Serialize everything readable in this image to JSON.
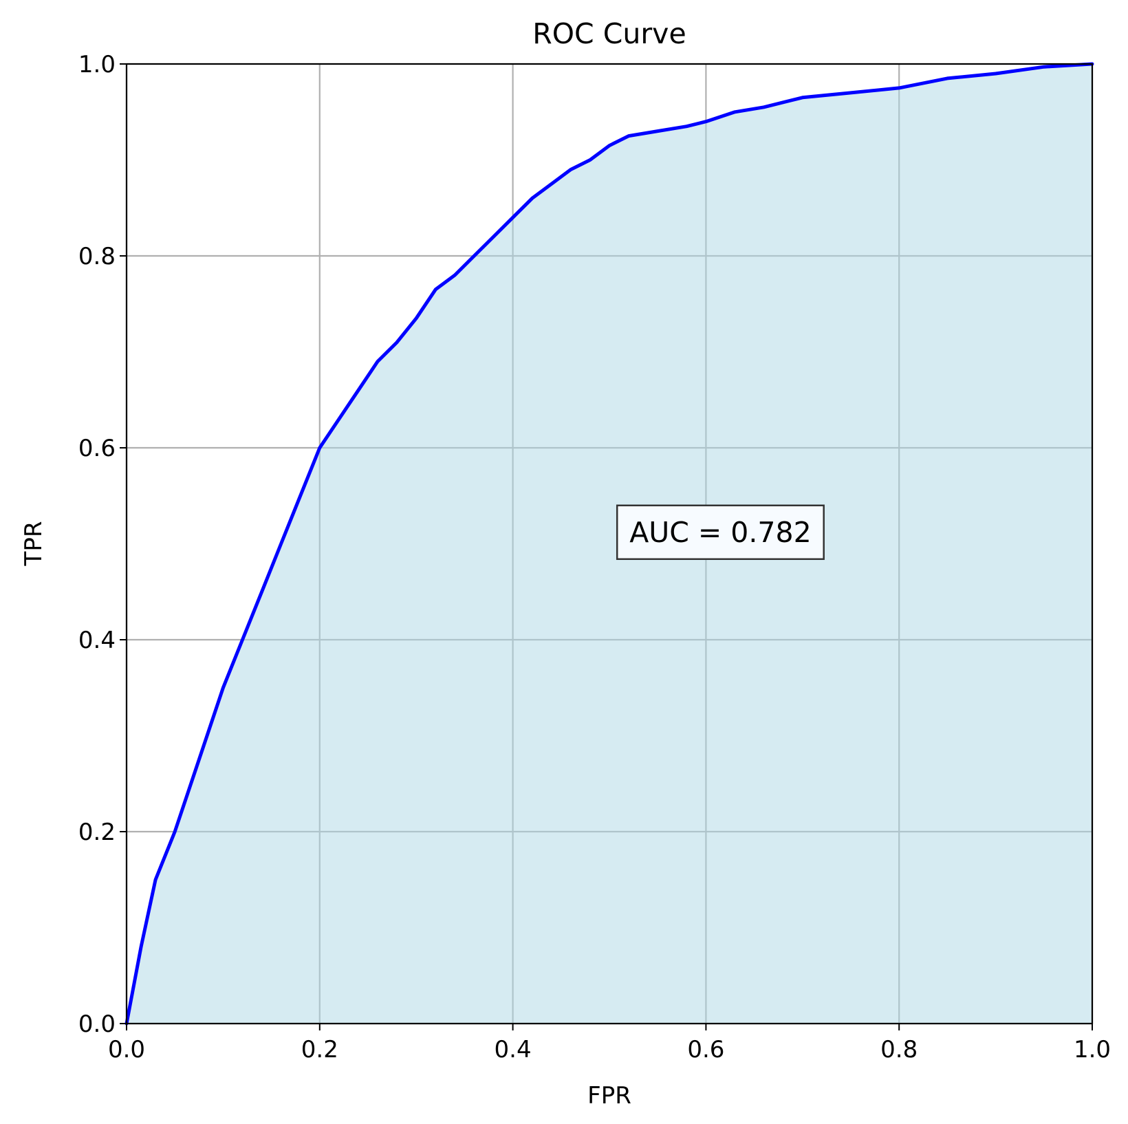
{
  "chart_data": {
    "type": "area",
    "title": "ROC Curve",
    "xlabel": "FPR",
    "ylabel": "TPR",
    "xlim": [
      0.0,
      1.0
    ],
    "ylim": [
      0.0,
      1.0
    ],
    "grid": true,
    "xticks": [
      "0.0",
      "0.2",
      "0.4",
      "0.6",
      "0.8",
      "1.0"
    ],
    "yticks": [
      "0.0",
      "0.2",
      "0.4",
      "0.6",
      "0.8",
      "1.0"
    ],
    "line_color": "#0000ff",
    "fill_color": "#add8e6",
    "annotation": "AUC = 0.782",
    "annotation_anchor": [
      0.615,
      0.512
    ],
    "series": [
      {
        "x": [
          0.0,
          0.015,
          0.03,
          0.05,
          0.07,
          0.09,
          0.1,
          0.12,
          0.14,
          0.16,
          0.18,
          0.2,
          0.21,
          0.22,
          0.24,
          0.26,
          0.28,
          0.3,
          0.32,
          0.34,
          0.36,
          0.38,
          0.4,
          0.42,
          0.44,
          0.46,
          0.48,
          0.5,
          0.52,
          0.55,
          0.58,
          0.6,
          0.63,
          0.66,
          0.7,
          0.75,
          0.8,
          0.85,
          0.9,
          0.95,
          1.0
        ],
        "y": [
          0.0,
          0.08,
          0.15,
          0.2,
          0.26,
          0.32,
          0.35,
          0.4,
          0.45,
          0.5,
          0.55,
          0.6,
          0.615,
          0.63,
          0.66,
          0.69,
          0.71,
          0.735,
          0.765,
          0.78,
          0.8,
          0.82,
          0.84,
          0.86,
          0.875,
          0.89,
          0.9,
          0.915,
          0.925,
          0.93,
          0.935,
          0.94,
          0.95,
          0.955,
          0.965,
          0.97,
          0.975,
          0.985,
          0.99,
          0.997,
          1.0
        ]
      }
    ]
  }
}
